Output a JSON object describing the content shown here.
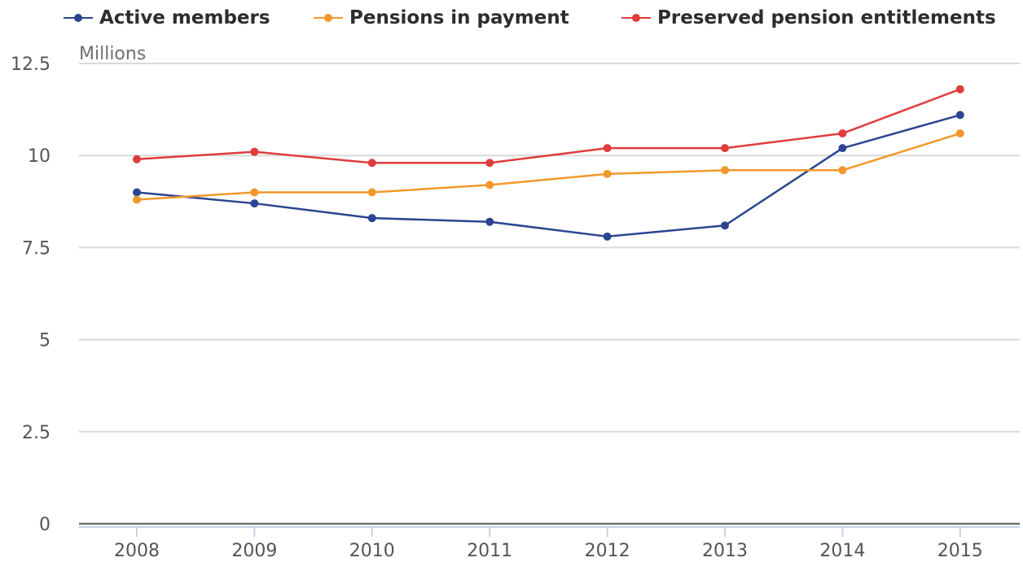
{
  "chart_data": {
    "type": "line",
    "ylabel": "Millions",
    "categories": [
      "2008",
      "2009",
      "2010",
      "2011",
      "2012",
      "2013",
      "2014",
      "2015"
    ],
    "ylim": [
      0,
      12.5
    ],
    "yticks": [
      0,
      2.5,
      5,
      7.5,
      10,
      12.5
    ],
    "ytick_labels": [
      "0",
      "2.5",
      "5",
      "7.5",
      "10",
      "12.5"
    ],
    "grid": true,
    "legend_position": "top",
    "series": [
      {
        "name": "Active members",
        "color": "#2b4590",
        "values": [
          9.0,
          8.7,
          8.3,
          8.2,
          7.8,
          8.1,
          10.2,
          11.1
        ]
      },
      {
        "name": "Pensions in payment",
        "color": "#f0992a",
        "values": [
          8.8,
          9.0,
          9.0,
          9.2,
          9.5,
          9.6,
          9.6,
          10.6
        ]
      },
      {
        "name": "Preserved pension entitlements",
        "color": "#e03c3c",
        "values": [
          9.9,
          10.1,
          9.8,
          9.8,
          10.2,
          10.2,
          10.6,
          11.8
        ]
      }
    ]
  }
}
